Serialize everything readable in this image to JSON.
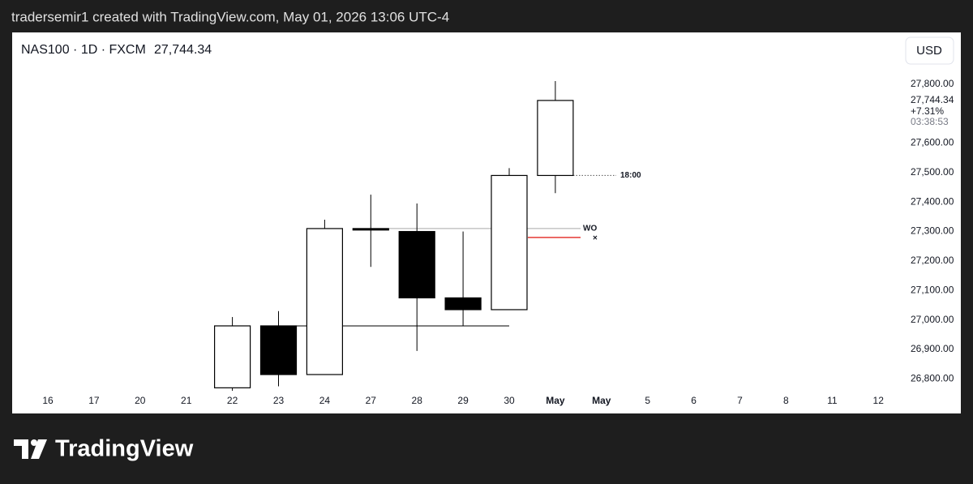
{
  "header": {
    "text": "tradersemir1 created with TradingView.com, May 01, 2026 13:06 UTC-4"
  },
  "chart_data": {
    "type": "candlestick",
    "title": "NAS100 · 1D · FXCM",
    "currency": "USD",
    "categories": [
      "16",
      "17",
      "20",
      "21",
      "22",
      "23",
      "24",
      "27",
      "28",
      "29",
      "30",
      "May",
      "May",
      "5",
      "6",
      "7",
      "8",
      "11",
      "12"
    ],
    "open": [
      null,
      null,
      null,
      null,
      26770,
      26980,
      26815,
      27310,
      27300,
      27075,
      27035,
      27490,
      null,
      null,
      null,
      null,
      null,
      null,
      null
    ],
    "high": [
      null,
      null,
      null,
      null,
      27010,
      27030,
      27340,
      27425,
      27395,
      27300,
      27515,
      27810,
      null,
      null,
      null,
      null,
      null,
      null,
      null
    ],
    "low": [
      null,
      null,
      null,
      null,
      26740,
      26775,
      26815,
      27180,
      26895,
      26980,
      27035,
      27430,
      null,
      null,
      null,
      null,
      null,
      null,
      null
    ],
    "close": [
      null,
      null,
      null,
      null,
      26980,
      26815,
      27310,
      27305,
      27075,
      27035,
      27490,
      27744.34,
      null,
      null,
      null,
      null,
      null,
      null,
      null
    ],
    "up_color": "#ffffff",
    "down_color": "#000000",
    "border_color": "#000000",
    "ylim": [
      26760,
      27975
    ],
    "yticks": [
      {
        "value": 26800,
        "label": "26,800.00"
      },
      {
        "value": 26900,
        "label": "26,900.00"
      },
      {
        "value": 27000,
        "label": "27,000.00"
      },
      {
        "value": 27100,
        "label": "27,100.00"
      },
      {
        "value": 27200,
        "label": "27,200.00"
      },
      {
        "value": 27300,
        "label": "27,300.00"
      },
      {
        "value": 27400,
        "label": "27,400.00"
      },
      {
        "value": 27500,
        "label": "27,500.00"
      },
      {
        "value": 27600,
        "label": "27,600.00"
      },
      {
        "value": 27800,
        "label": "27,800.00"
      }
    ],
    "last_price": {
      "value": 27744.34,
      "label": "27,744.34",
      "change": "+7.31%",
      "countdown": "03:38:53"
    },
    "levels": [
      {
        "value": 26980,
        "color": "#000000",
        "style": "solid"
      },
      {
        "value": 27310,
        "color": "#a9a9a9",
        "style": "solid",
        "label": "WO"
      },
      {
        "value": 27280,
        "color": "#e53935",
        "style": "solid",
        "label": "×"
      },
      {
        "value": 27490,
        "color": "#555555",
        "style": "dotted",
        "label": "18:00"
      }
    ],
    "grid": false
  },
  "footer": {
    "brand": "TradingView"
  }
}
